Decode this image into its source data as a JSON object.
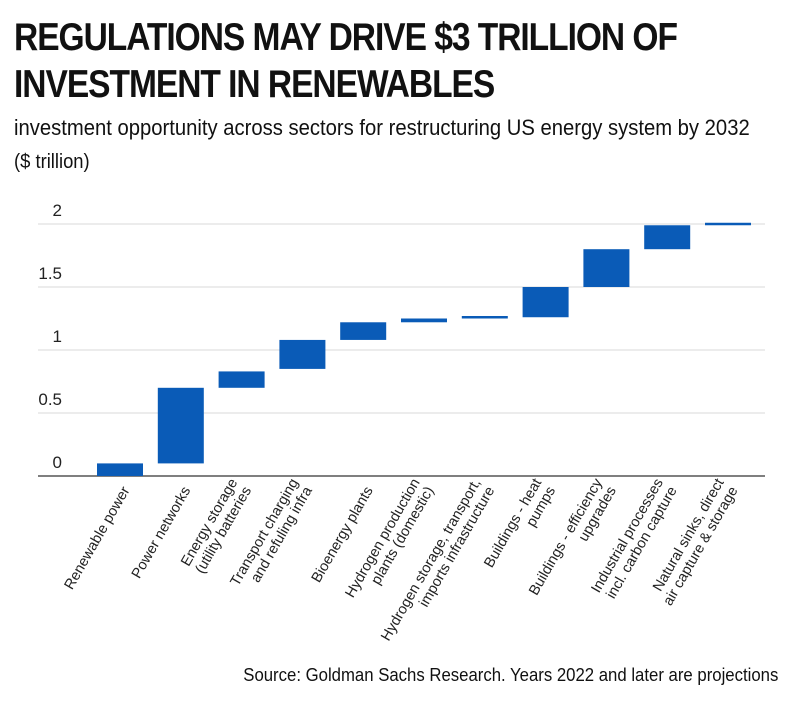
{
  "title": "REGULATIONS MAY DRIVE $3 TRILLION OF INVESTMENT IN RENEWABLES",
  "subtitle": "investment opportunity across sectors for restructuring US energy system by 2032",
  "unit": "($ trillion)",
  "source": "Source: Goldman Sachs Research. Years 2022 and later are projections",
  "colors": {
    "bar": "#0a5bb7",
    "grid": "#d9d9d9",
    "axis": "#333333"
  },
  "chart_data": {
    "type": "bar",
    "subtype": "waterfall",
    "title": "REGULATIONS MAY DRIVE $3 TRILLION OF INVESTMENT IN RENEWABLES",
    "subtitle": "investment opportunity across sectors for restructuring US energy system by 2032",
    "ylabel": "($ trillion)",
    "ylim": [
      0,
      2
    ],
    "yticks": [
      0,
      0.5,
      1,
      1.5,
      2
    ],
    "grid": true,
    "categories": [
      [
        "Renewable power"
      ],
      [
        "Power networks"
      ],
      [
        "Energy storage",
        "(utility batteries"
      ],
      [
        "Transport charging",
        "and refuling infra"
      ],
      [
        "Bioenergy plants"
      ],
      [
        "Hydrogen production",
        "plants (domestic)"
      ],
      [
        "Hydrogen storage, transport,",
        "imports infrastructure"
      ],
      [
        "Buildings - heat",
        "pumps"
      ],
      [
        "Buildings - efficiency",
        "upgrades"
      ],
      [
        "Industrial processes",
        "incl. carbon capture"
      ],
      [
        "Natural sinks, direct",
        "air capture & storage"
      ]
    ],
    "segments": [
      {
        "start": 0.0,
        "end": 0.1
      },
      {
        "start": 0.1,
        "end": 0.7
      },
      {
        "start": 0.7,
        "end": 0.83
      },
      {
        "start": 0.85,
        "end": 1.08
      },
      {
        "start": 1.08,
        "end": 1.22
      },
      {
        "start": 1.22,
        "end": 1.25
      },
      {
        "start": 1.25,
        "end": 1.26
      },
      {
        "start": 1.26,
        "end": 1.5
      },
      {
        "start": 1.5,
        "end": 1.8
      },
      {
        "start": 1.8,
        "end": 1.99
      },
      {
        "start": 1.99,
        "end": 2.0
      }
    ]
  }
}
